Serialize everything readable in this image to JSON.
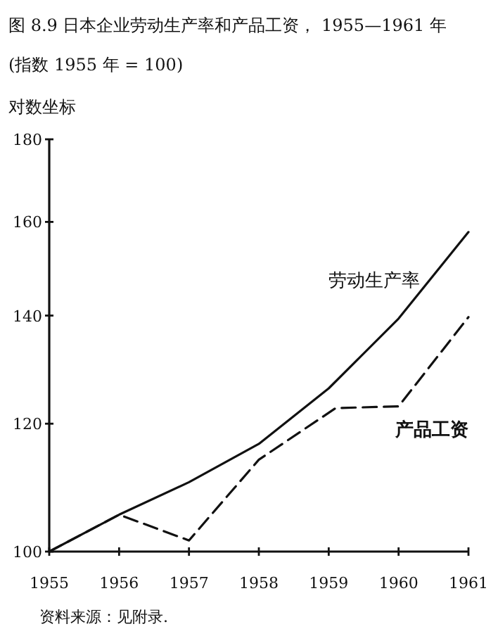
{
  "chart_data": {
    "type": "line",
    "title": "图 8.9 日本企业劳动生产率和产品工资， 1955—1961 年",
    "subtitle": "(指数 1955 年 = 100)",
    "ylabel": "对数坐标",
    "log": true,
    "x": [
      1955,
      1956,
      1957,
      1958,
      1959,
      1960,
      1961
    ],
    "xlim": [
      1955,
      1961
    ],
    "xticks": [
      1955,
      1956,
      1957,
      1958,
      1959,
      1960,
      1961
    ],
    "ylim": [
      100,
      180
    ],
    "yticks": [
      100,
      120,
      140,
      160,
      180
    ],
    "grid": false,
    "legend": false,
    "marker": "none",
    "series": [
      {
        "name": "劳动生产率",
        "color": "#111111",
        "line_style": "solid",
        "values": [
          100,
          105.4,
          110.4,
          116.6,
          126.2,
          139.4,
          157.7
        ]
      },
      {
        "name": "产品工资",
        "color": "#111111",
        "line_style": "dashed",
        "x": [
          1955,
          1956,
          1957,
          1958,
          1959.1,
          1960,
          1961
        ],
        "values": [
          100,
          105.4,
          101.6,
          114,
          122.7,
          123,
          139.7
        ]
      }
    ],
    "annotations": [
      "资料来源：见附录."
    ]
  }
}
